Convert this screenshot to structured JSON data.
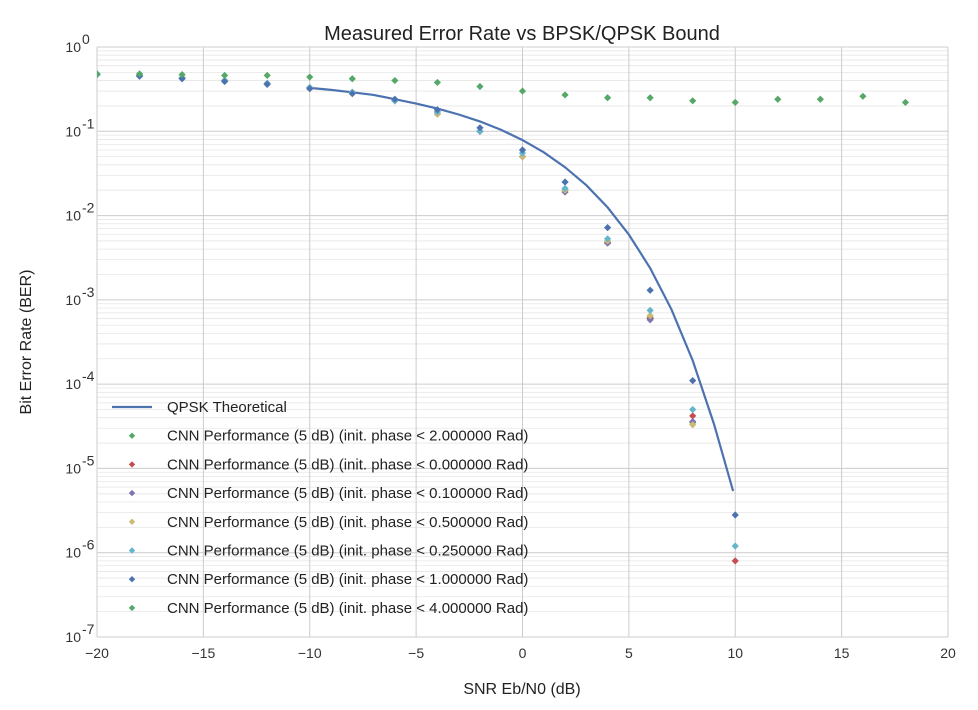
{
  "chart_data": {
    "type": "scatter",
    "title": "Measured Error Rate vs BPSK/QPSK Bound",
    "xlabel": "SNR Eb/N0 (dB)",
    "ylabel": "Bit Error Rate (BER)",
    "xlim": [
      -20,
      20
    ],
    "ylim": [
      1e-07,
      1
    ],
    "yscale": "log",
    "grid": true,
    "legend_position": "lower-left",
    "x_ticks": [
      -20,
      -15,
      -10,
      -5,
      0,
      5,
      10,
      15,
      20
    ],
    "x_tick_labels": [
      "−20",
      "−15",
      "−10",
      "−5",
      "0",
      "5",
      "10",
      "15",
      "20"
    ],
    "y_ticks": [
      {
        "value": 1,
        "base": "10",
        "exp": "0"
      },
      {
        "value": 0.1,
        "base": "10",
        "exp": "-1"
      },
      {
        "value": 0.01,
        "base": "10",
        "exp": "-2"
      },
      {
        "value": 0.001,
        "base": "10",
        "exp": "-3"
      },
      {
        "value": 0.0001,
        "base": "10",
        "exp": "-4"
      },
      {
        "value": 1e-05,
        "base": "10",
        "exp": "-5"
      },
      {
        "value": 1e-06,
        "base": "10",
        "exp": "-6"
      },
      {
        "value": 1e-07,
        "base": "10",
        "exp": "-7"
      }
    ],
    "line_series": {
      "name": "QPSK Theoretical",
      "color": "#4C72B0",
      "x": [
        -10,
        -9,
        -8,
        -7,
        -6,
        -5,
        -4,
        -3,
        -2,
        -1,
        0,
        1,
        2,
        3,
        4,
        5,
        6,
        7,
        8,
        9,
        9.9
      ],
      "y": [
        0.327,
        0.31,
        0.29,
        0.27,
        0.24,
        0.213,
        0.186,
        0.158,
        0.131,
        0.104,
        0.0786,
        0.0563,
        0.0375,
        0.0229,
        0.0125,
        0.00595,
        0.00239,
        0.000773,
        0.000191,
        3.36e-05,
        5.4e-06
      ]
    },
    "series": [
      {
        "name": "CNN Performance (5 dB) (init. phase < 2.000000 Rad)",
        "color": "#55A868",
        "x": [
          -20,
          -18,
          -16,
          -14,
          -12,
          -10,
          -8,
          -6,
          -4,
          -2,
          0,
          2,
          4,
          6,
          8
        ],
        "y": [
          0.47,
          0.46,
          0.43,
          0.4,
          0.37,
          0.33,
          0.29,
          0.23,
          0.16,
          0.1,
          0.05,
          0.02,
          0.005,
          0.00062,
          3.5e-05
        ]
      },
      {
        "name": "CNN Performance (5 dB) (init. phase < 0.000000 Rad)",
        "color": "#C44E52",
        "x": [
          -20,
          -18,
          -16,
          -14,
          -12,
          -10,
          -8,
          -6,
          -4,
          -2,
          0,
          2,
          4,
          6,
          8,
          10
        ],
        "y": [
          0.47,
          0.46,
          0.43,
          0.4,
          0.37,
          0.33,
          0.29,
          0.23,
          0.17,
          0.1,
          0.05,
          0.02,
          0.0048,
          0.0006,
          4.2e-05,
          8e-07
        ]
      },
      {
        "name": "CNN Performance (5 dB) (init. phase < 0.100000 Rad)",
        "color": "#8172B2",
        "x": [
          -20,
          -18,
          -16,
          -14,
          -12,
          -10,
          -8,
          -6,
          -4,
          -2,
          0,
          2,
          4,
          6,
          8
        ],
        "y": [
          0.47,
          0.46,
          0.43,
          0.4,
          0.37,
          0.33,
          0.29,
          0.23,
          0.16,
          0.1,
          0.05,
          0.019,
          0.0047,
          0.00058,
          3.6e-05
        ]
      },
      {
        "name": "CNN Performance (5 dB) (init. phase < 0.500000 Rad)",
        "color": "#CCB974",
        "x": [
          -20,
          -18,
          -16,
          -14,
          -12,
          -10,
          -8,
          -6,
          -4,
          -2,
          0,
          2,
          4,
          6,
          8
        ],
        "y": [
          0.47,
          0.46,
          0.43,
          0.4,
          0.37,
          0.33,
          0.29,
          0.23,
          0.16,
          0.1,
          0.05,
          0.02,
          0.005,
          0.00065,
          3.3e-05
        ]
      },
      {
        "name": "CNN Performance (5 dB) (init. phase < 0.250000 Rad)",
        "color": "#64B5CD",
        "x": [
          -20,
          -18,
          -16,
          -14,
          -12,
          -10,
          -8,
          -6,
          -4,
          -2,
          0,
          2,
          4,
          6,
          8,
          10
        ],
        "y": [
          0.47,
          0.46,
          0.43,
          0.4,
          0.37,
          0.33,
          0.29,
          0.23,
          0.17,
          0.1,
          0.055,
          0.021,
          0.0053,
          0.00075,
          5e-05,
          1.2e-06
        ]
      },
      {
        "name": "CNN Performance (5 dB) (init. phase < 1.000000 Rad)",
        "color": "#4C72B0",
        "x": [
          -20,
          -18,
          -16,
          -14,
          -12,
          -10,
          -8,
          -6,
          -4,
          -2,
          0,
          2,
          4,
          6,
          8,
          10
        ],
        "y": [
          0.48,
          0.45,
          0.42,
          0.39,
          0.36,
          0.32,
          0.28,
          0.24,
          0.18,
          0.11,
          0.06,
          0.025,
          0.0072,
          0.0013,
          0.00011,
          2.8e-06
        ]
      },
      {
        "name": "CNN Performance (5 dB) (init. phase < 4.000000 Rad)",
        "color": "#55A868",
        "x": [
          -20,
          -18,
          -16,
          -14,
          -12,
          -10,
          -8,
          -6,
          -4,
          -2,
          0,
          2,
          4,
          6,
          8,
          10,
          12,
          14,
          16,
          18
        ],
        "y": [
          0.48,
          0.48,
          0.47,
          0.46,
          0.46,
          0.44,
          0.42,
          0.4,
          0.38,
          0.34,
          0.3,
          0.27,
          0.25,
          0.25,
          0.23,
          0.22,
          0.24,
          0.24,
          0.26,
          0.22
        ]
      }
    ]
  }
}
